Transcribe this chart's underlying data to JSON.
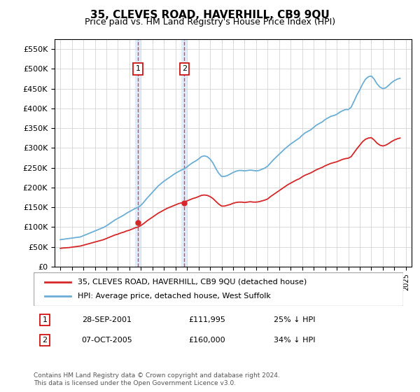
{
  "title": "35, CLEVES ROAD, HAVERHILL, CB9 9QU",
  "subtitle": "Price paid vs. HM Land Registry's House Price Index (HPI)",
  "legend_line1": "35, CLEVES ROAD, HAVERHILL, CB9 9QU (detached house)",
  "legend_line2": "HPI: Average price, detached house, West Suffolk",
  "footer": "Contains HM Land Registry data © Crown copyright and database right 2024.\nThis data is licensed under the Open Government Licence v3.0.",
  "transactions": [
    {
      "label": "1",
      "date": "28-SEP-2001",
      "price": 111995,
      "pct": "25% ↓ HPI",
      "x": 2001.75
    },
    {
      "label": "2",
      "date": "07-OCT-2005",
      "price": 160000,
      "pct": "34% ↓ HPI",
      "x": 2005.77
    }
  ],
  "hpi_color": "#6baed6",
  "price_color": "#d62728",
  "transaction_color": "#d62728",
  "marker_color": "#d62728",
  "vline_color": "#e84040",
  "shade_color": "#ddeeff",
  "ylim": [
    0,
    575000
  ],
  "yticks": [
    0,
    50000,
    100000,
    150000,
    200000,
    250000,
    300000,
    350000,
    400000,
    450000,
    500000,
    550000
  ],
  "ytick_labels": [
    "£0",
    "£50K",
    "£100K",
    "£150K",
    "£200K",
    "£250K",
    "£300K",
    "£350K",
    "£400K",
    "£450K",
    "£500K",
    "£550K"
  ],
  "xlim": [
    1994.5,
    2025.5
  ],
  "xticks": [
    1995,
    1996,
    1997,
    1998,
    1999,
    2000,
    2001,
    2002,
    2003,
    2004,
    2005,
    2006,
    2007,
    2008,
    2009,
    2010,
    2011,
    2012,
    2013,
    2014,
    2015,
    2016,
    2017,
    2018,
    2019,
    2020,
    2021,
    2022,
    2023,
    2024,
    2025
  ],
  "hpi_x": [
    1995.0,
    1995.25,
    1995.5,
    1995.75,
    1996.0,
    1996.25,
    1996.5,
    1996.75,
    1997.0,
    1997.25,
    1997.5,
    1997.75,
    1998.0,
    1998.25,
    1998.5,
    1998.75,
    1999.0,
    1999.25,
    1999.5,
    1999.75,
    2000.0,
    2000.25,
    2000.5,
    2000.75,
    2001.0,
    2001.25,
    2001.5,
    2001.75,
    2002.0,
    2002.25,
    2002.5,
    2002.75,
    2003.0,
    2003.25,
    2003.5,
    2003.75,
    2004.0,
    2004.25,
    2004.5,
    2004.75,
    2005.0,
    2005.25,
    2005.5,
    2005.75,
    2006.0,
    2006.25,
    2006.5,
    2006.75,
    2007.0,
    2007.25,
    2007.5,
    2007.75,
    2008.0,
    2008.25,
    2008.5,
    2008.75,
    2009.0,
    2009.25,
    2009.5,
    2009.75,
    2010.0,
    2010.25,
    2010.5,
    2010.75,
    2011.0,
    2011.25,
    2011.5,
    2011.75,
    2012.0,
    2012.25,
    2012.5,
    2012.75,
    2013.0,
    2013.25,
    2013.5,
    2013.75,
    2014.0,
    2014.25,
    2014.5,
    2014.75,
    2015.0,
    2015.25,
    2015.5,
    2015.75,
    2016.0,
    2016.25,
    2016.5,
    2016.75,
    2017.0,
    2017.25,
    2017.5,
    2017.75,
    2018.0,
    2018.25,
    2018.5,
    2018.75,
    2019.0,
    2019.25,
    2019.5,
    2019.75,
    2020.0,
    2020.25,
    2020.5,
    2020.75,
    2021.0,
    2021.25,
    2021.5,
    2021.75,
    2022.0,
    2022.25,
    2022.5,
    2022.75,
    2023.0,
    2023.25,
    2023.5,
    2023.75,
    2024.0,
    2024.25,
    2024.5
  ],
  "hpi_y": [
    68000,
    69000,
    70000,
    71000,
    72000,
    73000,
    74000,
    75000,
    78000,
    81000,
    84000,
    87000,
    90000,
    93000,
    96000,
    99000,
    103000,
    108000,
    113000,
    118000,
    122000,
    126000,
    130000,
    135000,
    139000,
    143000,
    147000,
    150000,
    155000,
    163000,
    172000,
    180000,
    188000,
    196000,
    204000,
    210000,
    216000,
    221000,
    226000,
    231000,
    236000,
    240000,
    244000,
    247000,
    252000,
    258000,
    263000,
    267000,
    272000,
    278000,
    280000,
    278000,
    272000,
    262000,
    248000,
    236000,
    228000,
    228000,
    230000,
    234000,
    238000,
    241000,
    243000,
    243000,
    242000,
    243000,
    244000,
    243000,
    242000,
    243000,
    246000,
    249000,
    254000,
    262000,
    270000,
    277000,
    284000,
    291000,
    298000,
    304000,
    310000,
    315000,
    320000,
    325000,
    332000,
    338000,
    342000,
    346000,
    352000,
    358000,
    362000,
    366000,
    372000,
    376000,
    380000,
    382000,
    385000,
    390000,
    394000,
    397000,
    397000,
    403000,
    418000,
    434000,
    447000,
    462000,
    474000,
    480000,
    482000,
    474000,
    462000,
    454000,
    450000,
    452000,
    458000,
    465000,
    470000,
    474000,
    476000
  ],
  "price_x": [
    1995.0,
    1995.25,
    1995.5,
    1995.75,
    1996.0,
    1996.25,
    1996.5,
    1996.75,
    1997.0,
    1997.25,
    1997.5,
    1997.75,
    1998.0,
    1998.25,
    1998.5,
    1998.75,
    1999.0,
    1999.25,
    1999.5,
    1999.75,
    2000.0,
    2000.25,
    2000.5,
    2000.75,
    2001.0,
    2001.25,
    2001.5,
    2001.75,
    2002.0,
    2002.25,
    2002.5,
    2002.75,
    2003.0,
    2003.25,
    2003.5,
    2003.75,
    2004.0,
    2004.25,
    2004.5,
    2004.75,
    2005.0,
    2005.25,
    2005.5,
    2005.75,
    2006.0,
    2006.25,
    2006.5,
    2006.75,
    2007.0,
    2007.25,
    2007.5,
    2007.75,
    2008.0,
    2008.25,
    2008.5,
    2008.75,
    2009.0,
    2009.25,
    2009.5,
    2009.75,
    2010.0,
    2010.25,
    2010.5,
    2010.75,
    2011.0,
    2011.25,
    2011.5,
    2011.75,
    2012.0,
    2012.25,
    2012.5,
    2012.75,
    2013.0,
    2013.25,
    2013.5,
    2013.75,
    2014.0,
    2014.25,
    2014.5,
    2014.75,
    2015.0,
    2015.25,
    2015.5,
    2015.75,
    2016.0,
    2016.25,
    2016.5,
    2016.75,
    2017.0,
    2017.25,
    2017.5,
    2017.75,
    2018.0,
    2018.25,
    2018.5,
    2018.75,
    2019.0,
    2019.25,
    2019.5,
    2019.75,
    2020.0,
    2020.25,
    2020.5,
    2020.75,
    2021.0,
    2021.25,
    2021.5,
    2021.75,
    2022.0,
    2022.25,
    2022.5,
    2022.75,
    2023.0,
    2023.25,
    2023.5,
    2023.75,
    2024.0,
    2024.25,
    2024.5
  ],
  "price_y": [
    46000,
    47000,
    47500,
    48000,
    49000,
    50000,
    51000,
    52000,
    54000,
    56000,
    58000,
    60000,
    62000,
    64000,
    66000,
    68000,
    71000,
    74000,
    77000,
    80000,
    82000,
    85000,
    87000,
    90000,
    92000,
    95000,
    98000,
    100000,
    104000,
    109000,
    115000,
    120000,
    125000,
    130000,
    135000,
    139000,
    143000,
    147000,
    150000,
    153000,
    156000,
    159000,
    161000,
    163000,
    166000,
    169000,
    172000,
    174000,
    177000,
    180000,
    181000,
    180000,
    177000,
    172000,
    165000,
    158000,
    153000,
    153000,
    155000,
    157000,
    160000,
    162000,
    163000,
    163000,
    162000,
    163000,
    164000,
    163000,
    163000,
    164000,
    166000,
    168000,
    171000,
    177000,
    182000,
    187000,
    192000,
    197000,
    202000,
    207000,
    211000,
    215000,
    219000,
    222000,
    227000,
    231000,
    234000,
    237000,
    241000,
    245000,
    248000,
    251000,
    255000,
    258000,
    261000,
    263000,
    265000,
    268000,
    271000,
    273000,
    274000,
    278000,
    288000,
    298000,
    307000,
    316000,
    322000,
    325000,
    326000,
    320000,
    312000,
    307000,
    305000,
    307000,
    311000,
    316000,
    320000,
    323000,
    325000
  ]
}
